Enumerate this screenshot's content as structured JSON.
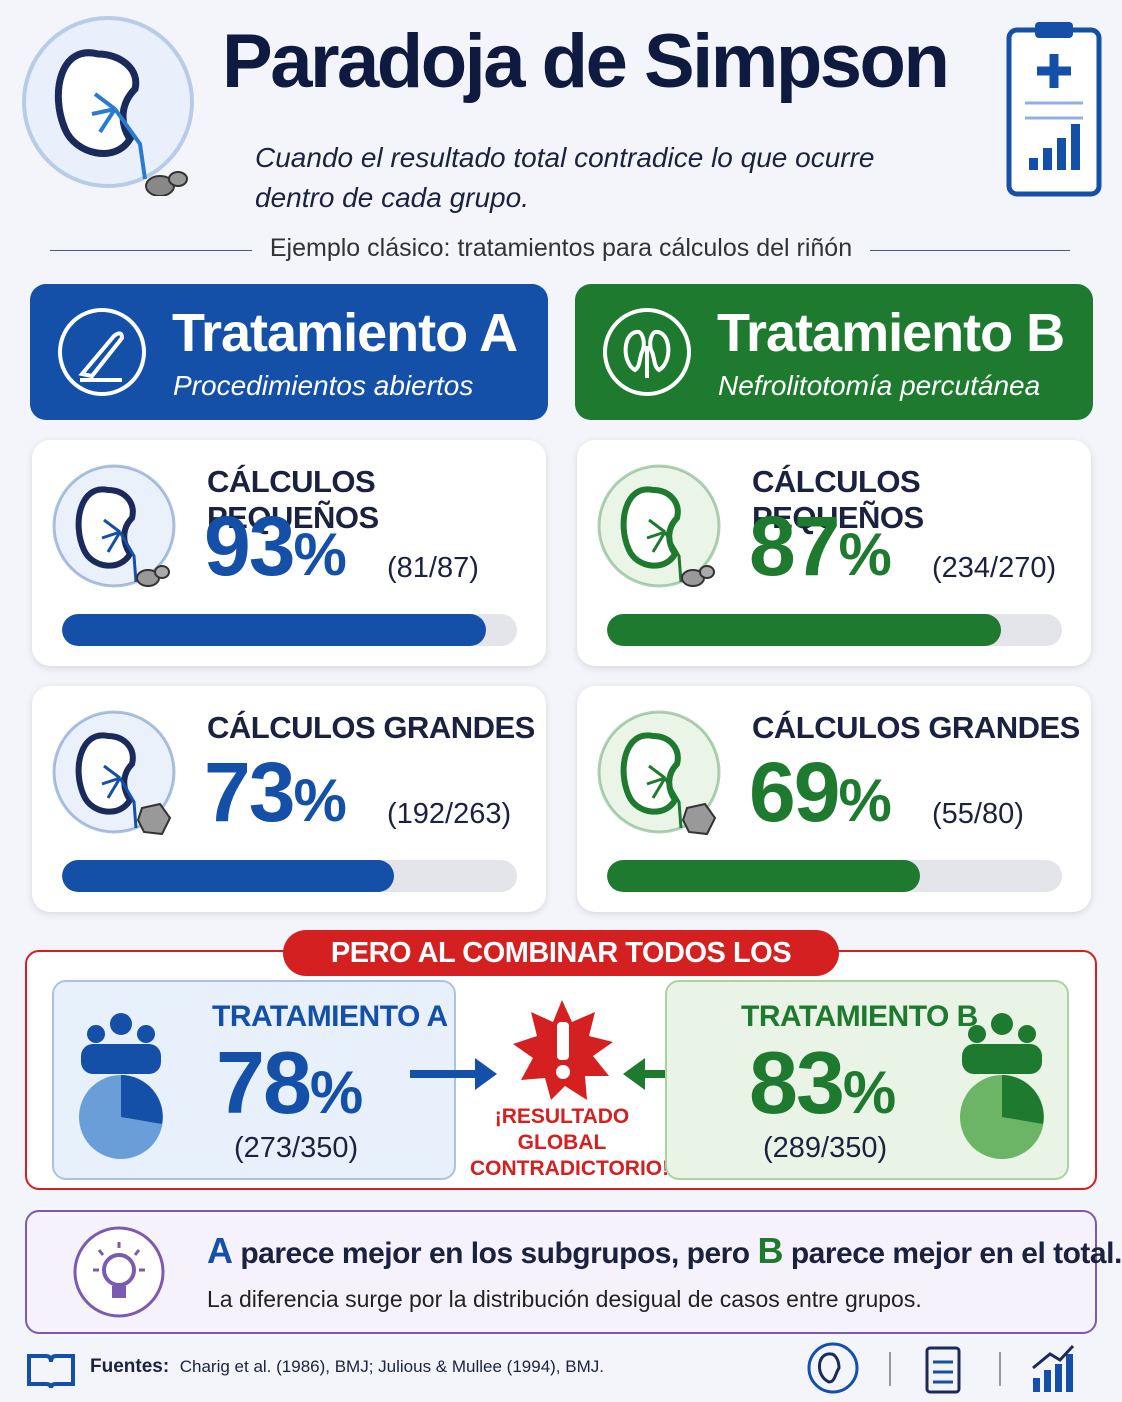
{
  "header": {
    "title": "Paradoja de Simpson",
    "subtitle": "Cuando el resultado total contradice lo que ocurre dentro de cada grupo.",
    "section_label": "Ejemplo clásico: tratamientos para cálculos del riñón"
  },
  "percent_sign": "%",
  "treatments": [
    {
      "name": "Tratamiento A",
      "subtitle": "Procedimientos abiertos",
      "color": "#1450a8",
      "groups": [
        {
          "label": "CÁLCULOS PEQUEÑOS",
          "value": 93,
          "fraction": "(81/87)",
          "cases": [
            81,
            87
          ]
        },
        {
          "label": "CÁLCULOS GRANDES",
          "value": 73,
          "fraction": "(192/263)",
          "cases": [
            192,
            263
          ]
        }
      ]
    },
    {
      "name": "Tratamiento B",
      "subtitle": "Nefrolitotomía percutánea",
      "color": "#1e7a2e",
      "groups": [
        {
          "label": "CÁLCULOS PEQUEÑOS",
          "value": 87,
          "fraction": "(234/270)",
          "cases": [
            234,
            270
          ]
        },
        {
          "label": "CÁLCULOS GRANDES",
          "value": 69,
          "fraction": "(55/80)",
          "cases": [
            55,
            80
          ]
        }
      ]
    }
  ],
  "combined": {
    "banner": "PERO AL COMBINAR TODOS LOS CASOS...",
    "items": [
      {
        "label": "TRATAMIENTO A",
        "value": 78,
        "fraction": "(273/350)"
      },
      {
        "label": "TRATAMIENTO B",
        "value": 83,
        "fraction": "(289/350)"
      }
    ],
    "warning": "¡RESULTADO GLOBAL CONTRADICTORIO!"
  },
  "conclusion": {
    "headline": [
      "A",
      " parece mejor en los subgrupos, pero ",
      "B",
      " parece mejor en el total."
    ],
    "note": "La diferencia surge por la distribución desigual de casos entre grupos."
  },
  "footer": {
    "sources_label": "Fuentes:",
    "sources": "Charig et al. (1986), BMJ; Julious & Mullee (1994), BMJ."
  }
}
